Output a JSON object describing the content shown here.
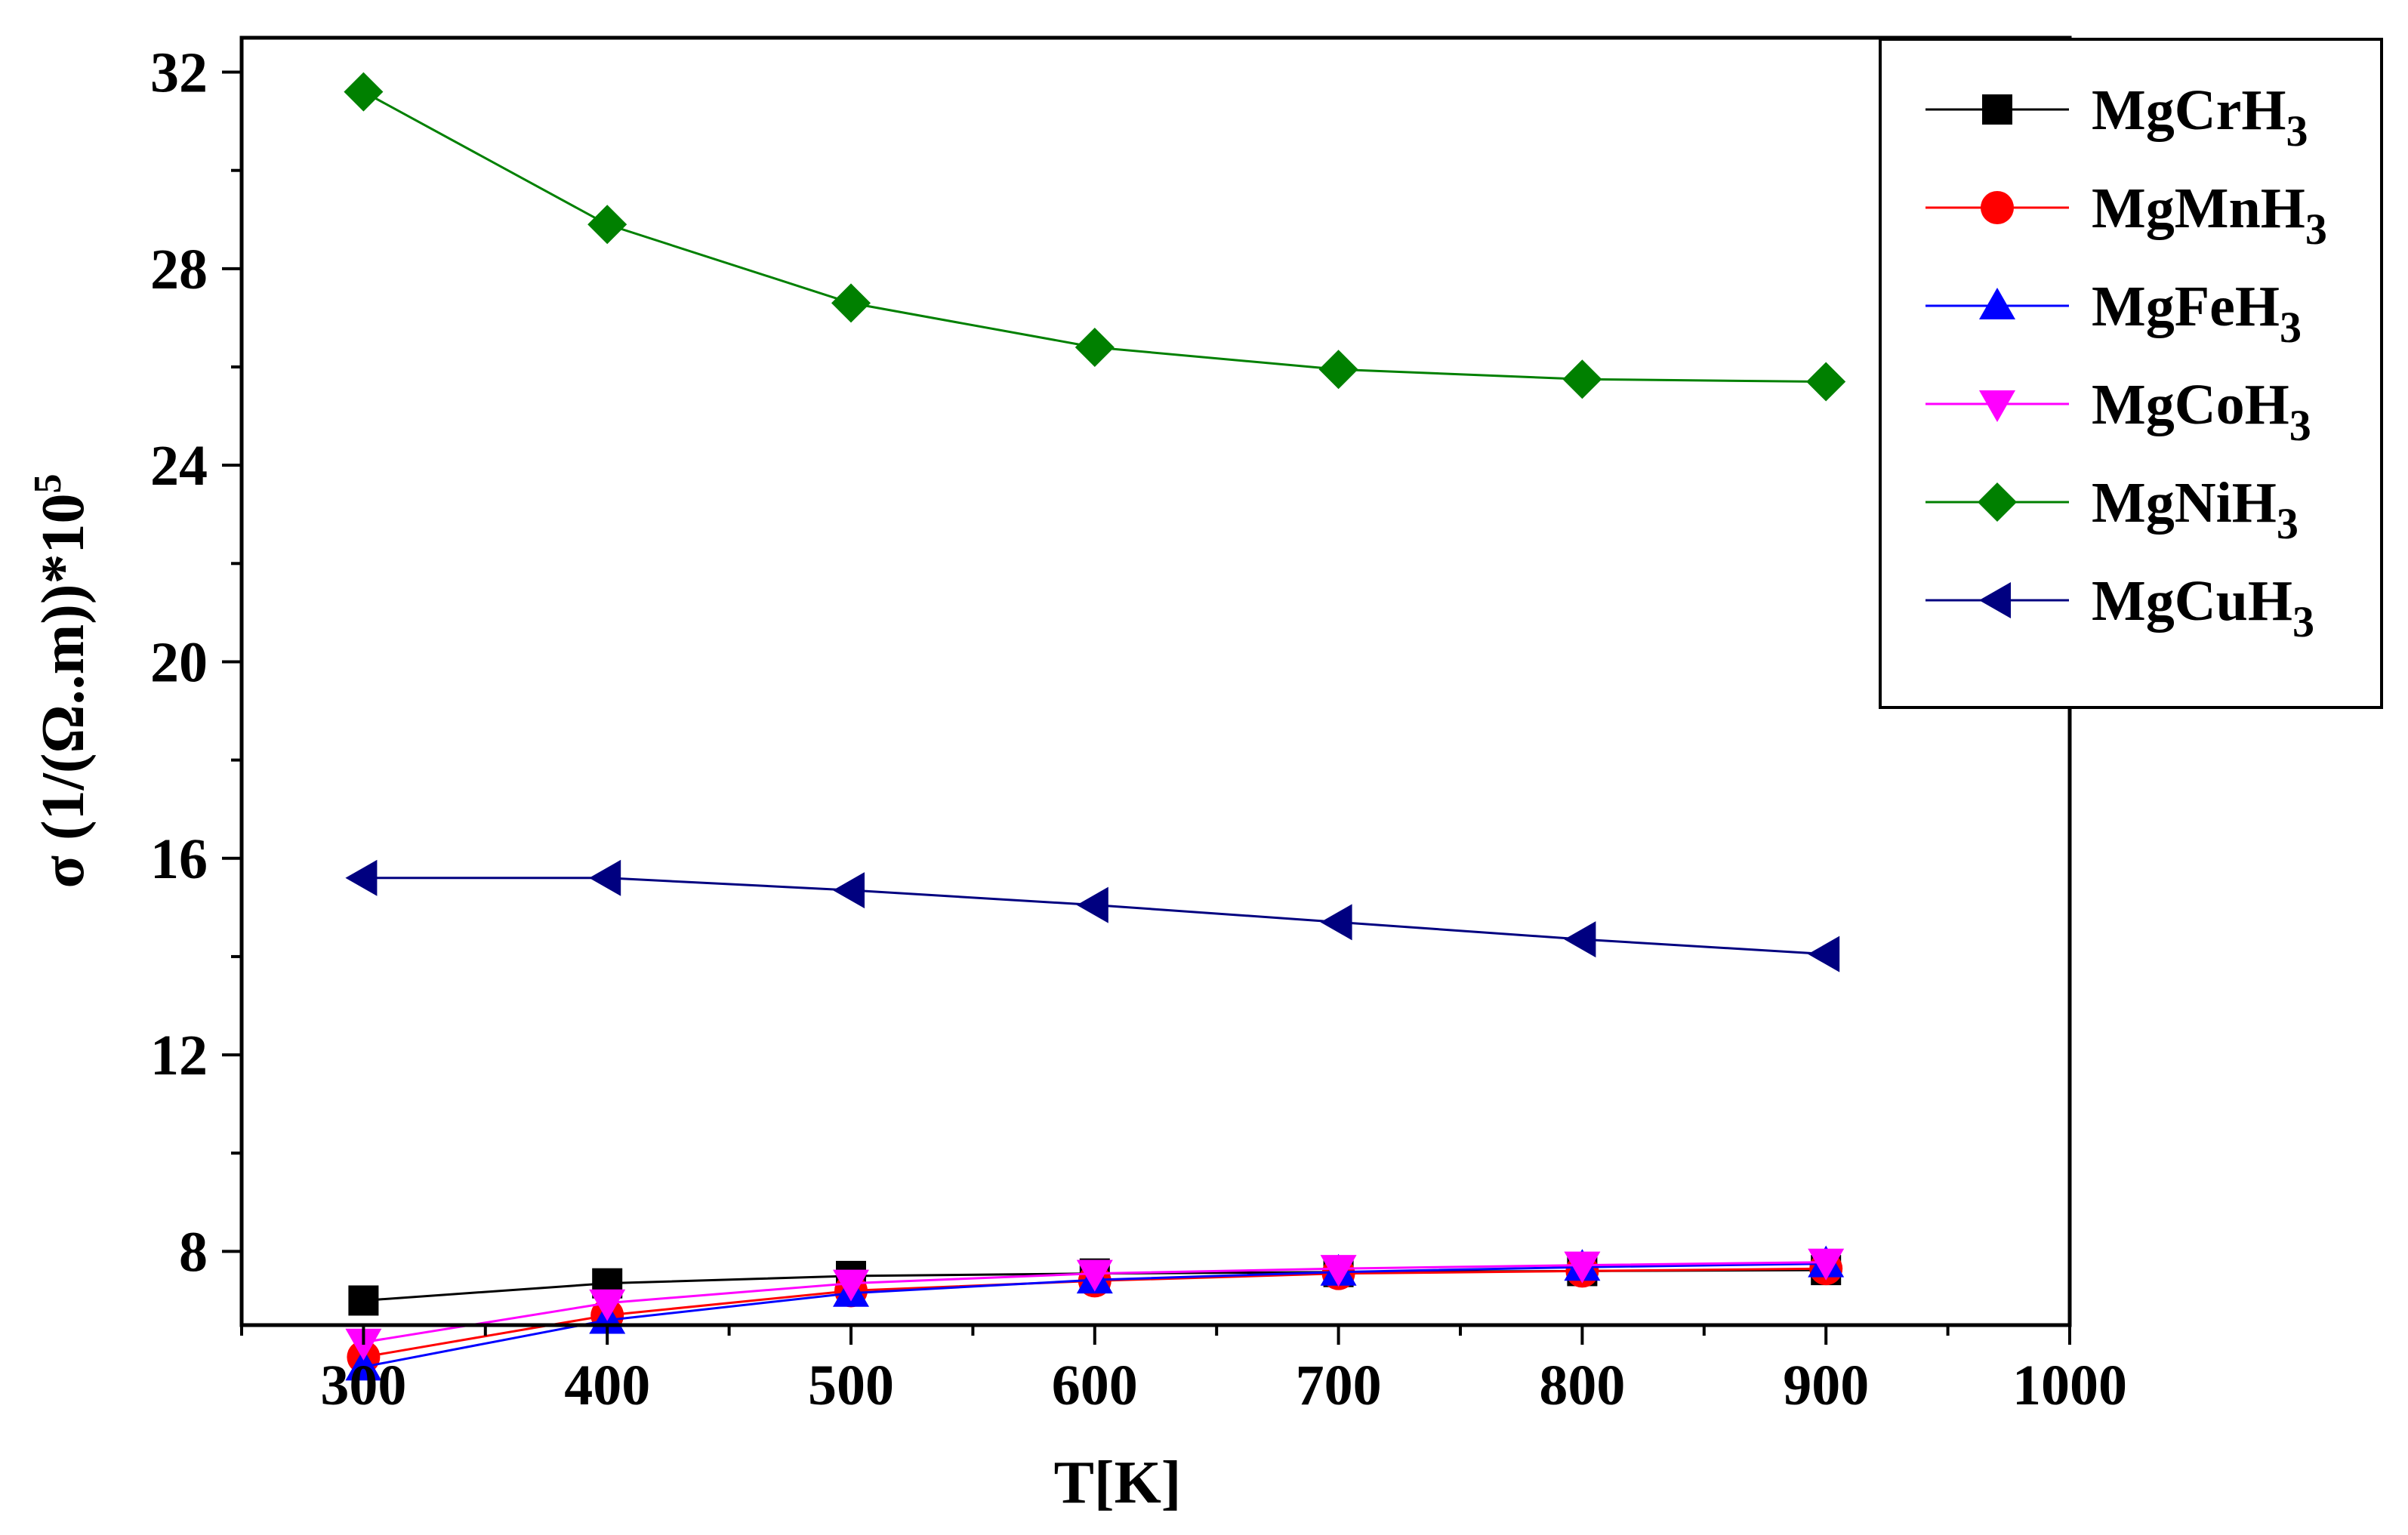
{
  "chart_data": {
    "type": "line",
    "title": "",
    "xlabel": "T[K]",
    "ylabel": {
      "base": "σ (1/(Ω..m))*10",
      "sup": "5"
    },
    "xlim": [
      250,
      1000
    ],
    "ylim": [
      6.5,
      32.7
    ],
    "xticks": [
      300,
      400,
      500,
      600,
      700,
      800,
      900,
      1000
    ],
    "yticks": [
      8,
      12,
      16,
      20,
      24,
      28,
      32
    ],
    "grid": false,
    "legend_position": "top-right",
    "x": [
      300,
      400,
      500,
      600,
      700,
      800,
      900
    ],
    "series": [
      {
        "name": "MgCrH",
        "sub": "3",
        "marker": "square",
        "color": "#000000",
        "values": [
          7.0,
          7.35,
          7.5,
          7.55,
          7.58,
          7.6,
          7.62
        ]
      },
      {
        "name": "MgMnH",
        "sub": "3",
        "marker": "circle",
        "color": "#ff0000",
        "values": [
          5.85,
          6.7,
          7.2,
          7.4,
          7.55,
          7.6,
          7.65
        ]
      },
      {
        "name": "MgFeH",
        "sub": "3",
        "marker": "triangle-up",
        "color": "#0000ff",
        "values": [
          5.65,
          6.6,
          7.15,
          7.42,
          7.58,
          7.68,
          7.75
        ]
      },
      {
        "name": "MgCoH",
        "sub": "3",
        "marker": "triangle-down",
        "color": "#ff00ff",
        "values": [
          6.15,
          6.95,
          7.35,
          7.55,
          7.65,
          7.72,
          7.78
        ]
      },
      {
        "name": "MgNiH",
        "sub": "3",
        "marker": "diamond",
        "color": "#008000",
        "values": [
          31.6,
          28.9,
          27.3,
          26.4,
          25.95,
          25.75,
          25.7
        ]
      },
      {
        "name": "MgCuH",
        "sub": "3",
        "marker": "triangle-left",
        "color": "#000080",
        "values": [
          15.6,
          15.6,
          15.35,
          15.05,
          14.7,
          14.35,
          14.05
        ]
      }
    ]
  }
}
